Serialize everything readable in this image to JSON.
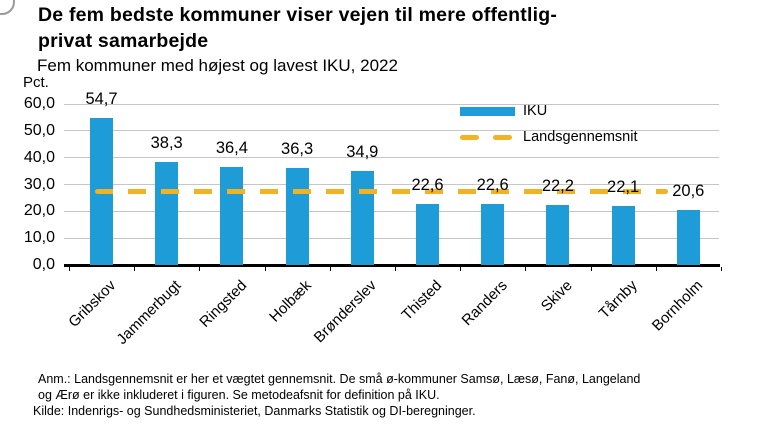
{
  "header": {
    "title": "De fem bedste kommuner viser vejen til mere offentlig-privat samarbejde",
    "subtitle": "Fem kommuner med højest og lavest IKU, 2022",
    "unit_label": "Pct."
  },
  "chart_data": {
    "type": "bar",
    "title": "De fem bedste kommuner viser vejen til mere offentlig-privat samarbejde",
    "subtitle": "Fem kommuner med højest og lavest IKU, 2022",
    "ylabel": "Pct.",
    "xlabel": "",
    "ylim": [
      0,
      60
    ],
    "ytick_step": 10,
    "ytick_labels": [
      "0,0",
      "10,0",
      "20,0",
      "30,0",
      "40,0",
      "50,0",
      "60,0"
    ],
    "grid": true,
    "legend_position": "top-right",
    "categories": [
      "Gribskov",
      "Jammerbugt",
      "Ringsted",
      "Holbæk",
      "Brønderslev",
      "Thisted",
      "Randers",
      "Skive",
      "Tårnby",
      "Bornholm"
    ],
    "values": [
      54.7,
      38.3,
      36.4,
      36.3,
      34.9,
      22.6,
      22.6,
      22.2,
      22.1,
      20.6
    ],
    "value_labels": [
      "54,7",
      "38,3",
      "36,4",
      "36,3",
      "34,9",
      "22,6",
      "22,6",
      "22,2",
      "22,1",
      "20,6"
    ],
    "average_line": {
      "label": "Landsgennemsnit",
      "value": 27.5,
      "style": "dashed"
    },
    "legend": [
      {
        "label": "IKU",
        "type": "bar",
        "color": "#1E9CD7"
      },
      {
        "label": "Landsgennemsnit",
        "type": "dashed-line",
        "color": "#F0B323"
      }
    ]
  },
  "colors": {
    "bar": "#1E9CD7",
    "average": "#F0B323",
    "grid": "#C6C6C6",
    "axis": "#000000"
  },
  "footnotes": {
    "anm": "Anm.: Landsgennemsnit er her et vægtet gennemsnit. De små ø-kommuner Samsø, Læsø, Fanø, Langeland og Ærø er ikke inkluderet i figuren. Se metodeafsnit for definition på IKU.",
    "kilde": "Kilde: Indenrigs- og Sundhedsministeriet, Danmarks Statistik og DI-beregninger."
  }
}
